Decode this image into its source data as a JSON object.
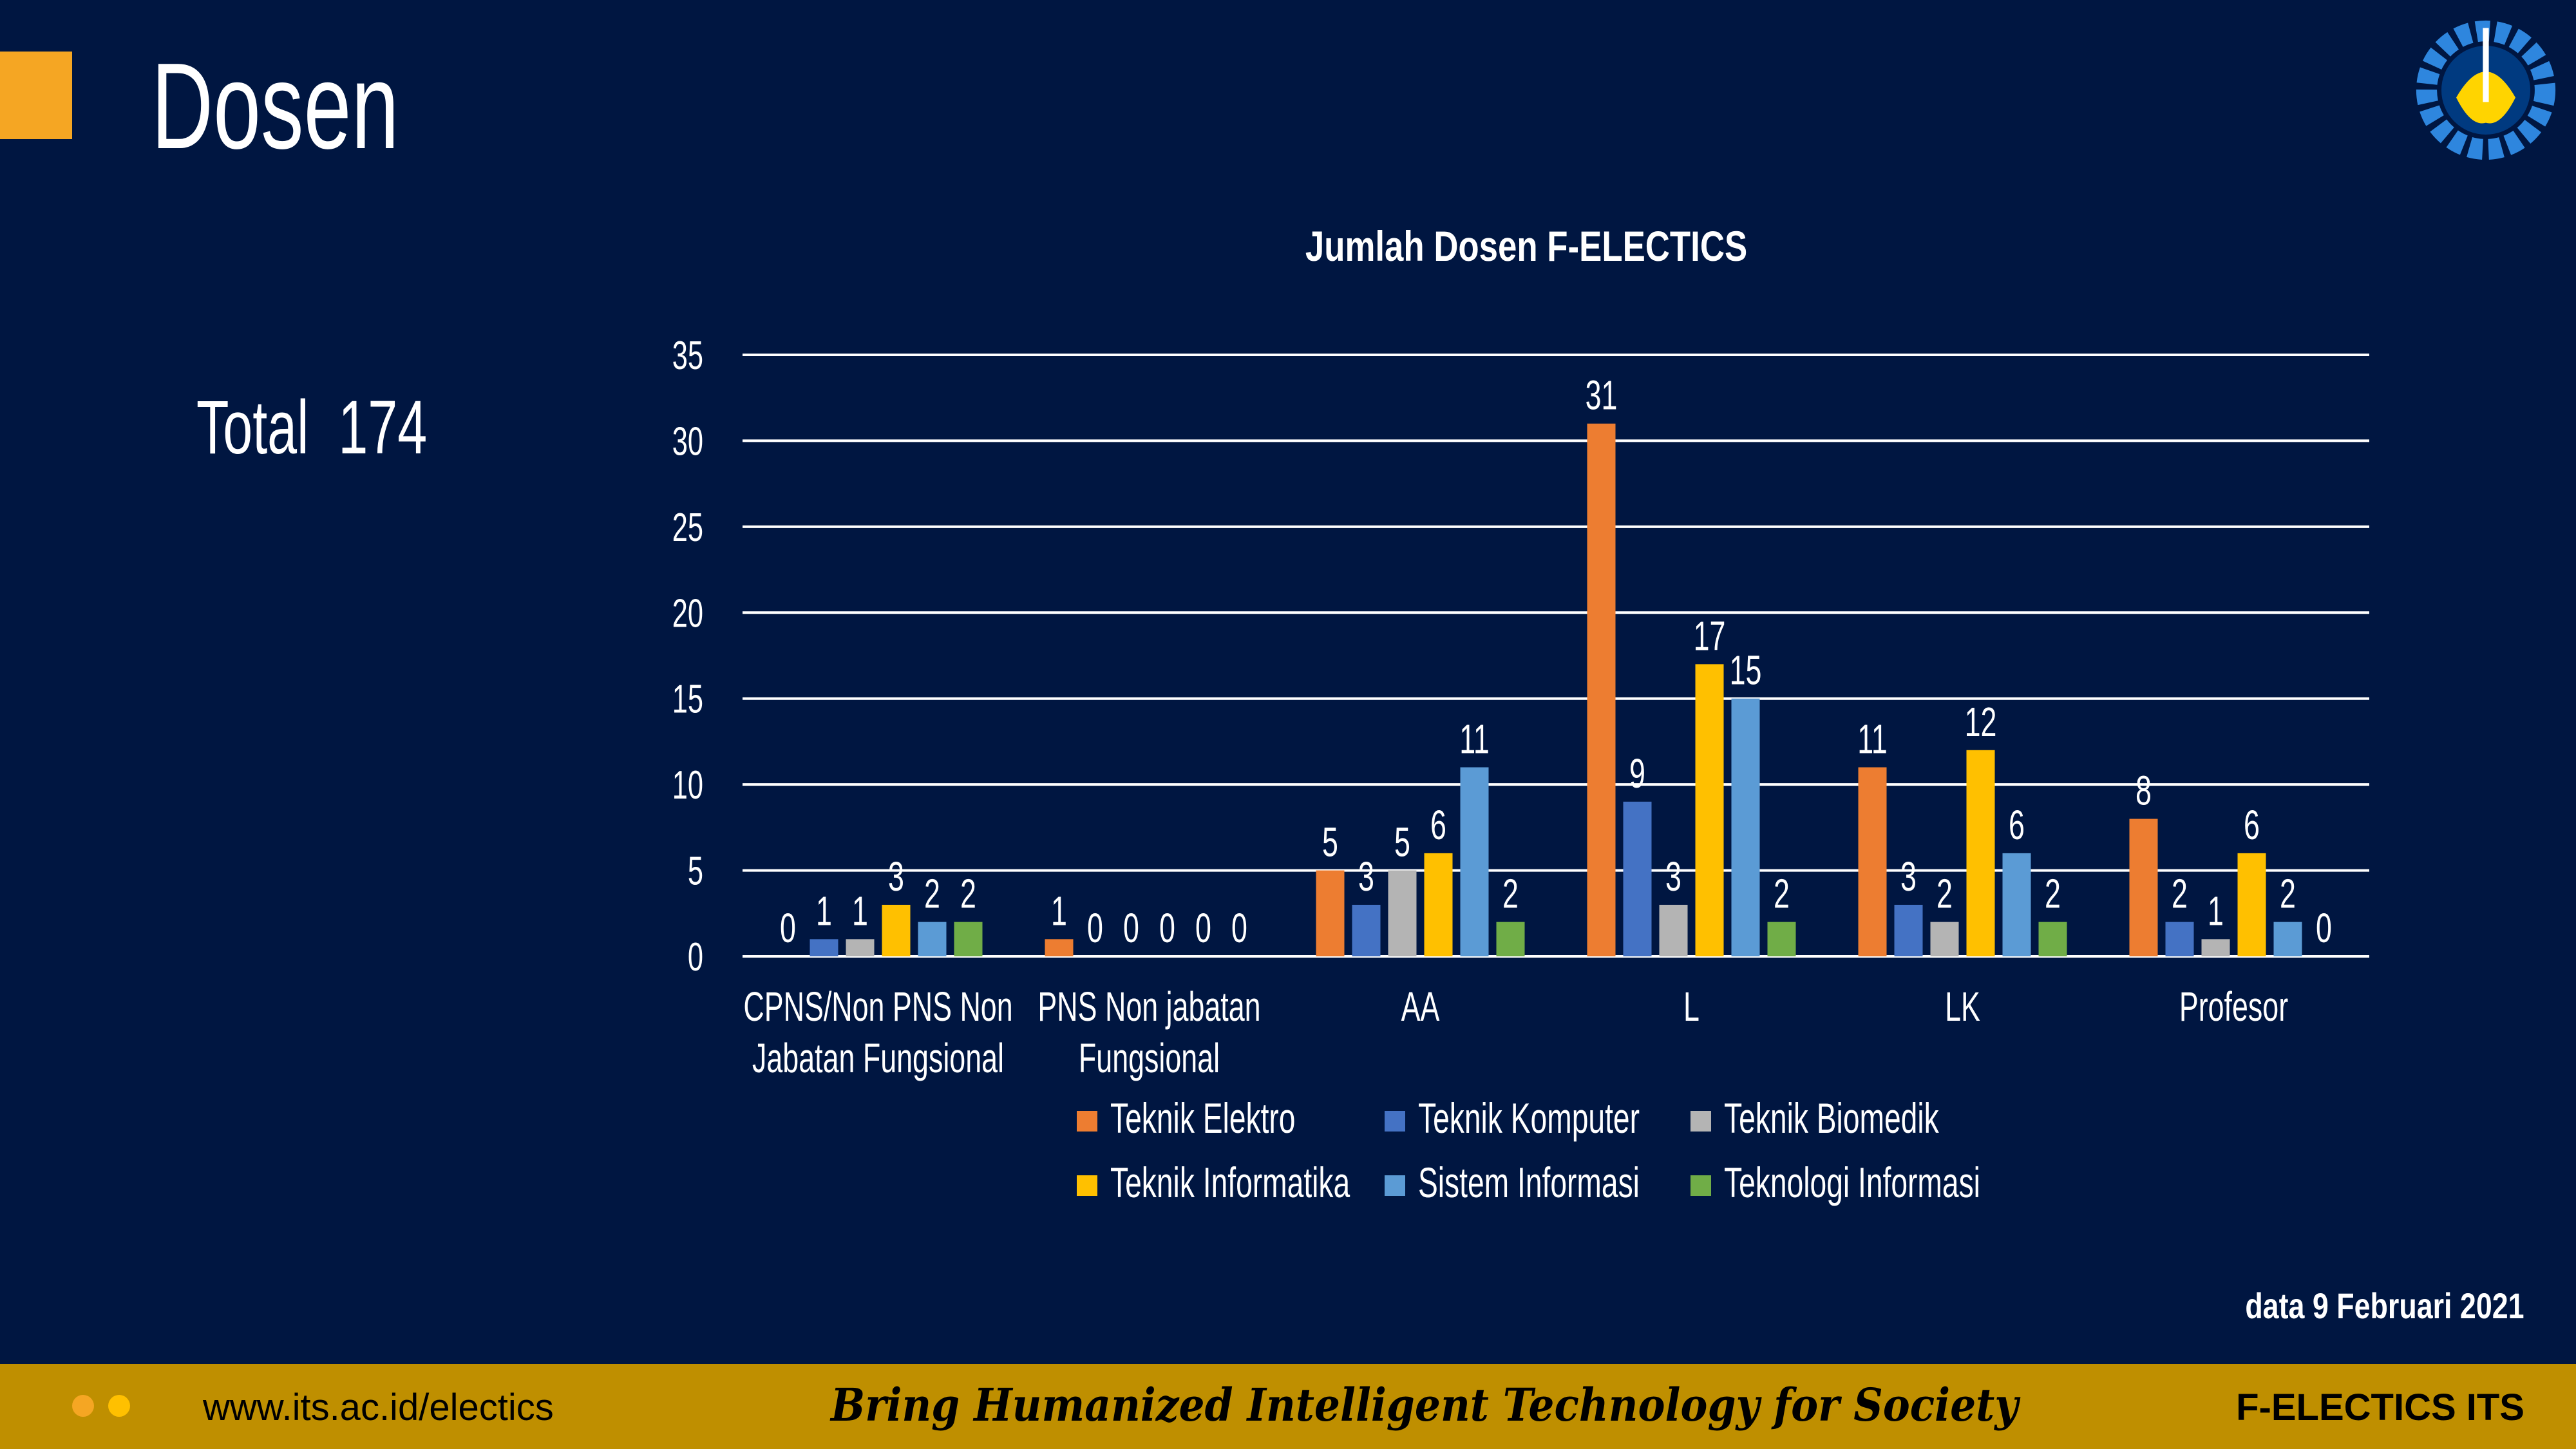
{
  "header": {
    "title": "Dosen",
    "total_label": "Total  174"
  },
  "date_note": "data 9 Februari 2021",
  "footer": {
    "url": "www.its.ac.id/electics",
    "slogan": "Bring Humanized Intelligent Technology for Society",
    "brand": "F-ELECTICS ITS"
  },
  "colors": {
    "background": "#001641",
    "footer": "#BF8F00",
    "accent": "#F5A623"
  },
  "chart_data": {
    "type": "bar",
    "title": "Jumlah Dosen F-ELECTICS",
    "categories": [
      [
        "CPNS/Non PNS Non",
        "Jabatan Fungsional"
      ],
      [
        "PNS Non jabatan",
        "Fungsional"
      ],
      [
        "AA"
      ],
      [
        "L"
      ],
      [
        "LK"
      ],
      [
        "Profesor"
      ]
    ],
    "series": [
      {
        "name": "Teknik Elektro",
        "color": "#ED7D31",
        "values": [
          0,
          1,
          5,
          31,
          11,
          8
        ]
      },
      {
        "name": "Teknik Komputer",
        "color": "#4472C4",
        "values": [
          1,
          0,
          3,
          9,
          3,
          2
        ]
      },
      {
        "name": "Teknik Biomedik",
        "color": "#B4B4B4",
        "values": [
          1,
          0,
          5,
          3,
          2,
          1
        ]
      },
      {
        "name": "Teknik Informatika",
        "color": "#FFC000",
        "values": [
          3,
          0,
          6,
          17,
          12,
          6
        ]
      },
      {
        "name": "Sistem Informasi",
        "color": "#5B9BD5",
        "values": [
          2,
          0,
          11,
          15,
          6,
          2
        ]
      },
      {
        "name": "Teknologi Informasi",
        "color": "#70AD47",
        "values": [
          2,
          0,
          2,
          2,
          2,
          0
        ]
      }
    ],
    "ylim": [
      0,
      35
    ],
    "yticks": [
      0,
      5,
      10,
      15,
      20,
      25,
      30,
      35
    ],
    "grid": true,
    "legend": "bottom",
    "data_labels": true
  }
}
